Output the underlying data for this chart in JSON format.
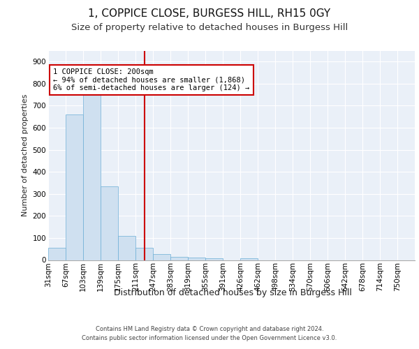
{
  "title1": "1, COPPICE CLOSE, BURGESS HILL, RH15 0GY",
  "title2": "Size of property relative to detached houses in Burgess Hill",
  "xlabel": "Distribution of detached houses by size in Burgess Hill",
  "ylabel": "Number of detached properties",
  "footer1": "Contains HM Land Registry data © Crown copyright and database right 2024.",
  "footer2": "Contains public sector information licensed under the Open Government Licence v3.0.",
  "bin_labels": [
    "31sqm",
    "67sqm",
    "103sqm",
    "139sqm",
    "175sqm",
    "211sqm",
    "247sqm",
    "283sqm",
    "319sqm",
    "355sqm",
    "391sqm",
    "426sqm",
    "462sqm",
    "498sqm",
    "534sqm",
    "570sqm",
    "606sqm",
    "642sqm",
    "678sqm",
    "714sqm",
    "750sqm"
  ],
  "bar_values": [
    55,
    660,
    750,
    335,
    110,
    55,
    27,
    15,
    10,
    7,
    0,
    8,
    0,
    0,
    0,
    0,
    0,
    0,
    0,
    0,
    0
  ],
  "bar_color": "#cfe0f0",
  "bar_edge_color": "#6baed6",
  "vline_position": 5.5,
  "vline_color": "#cc0000",
  "annotation_text": "1 COPPICE CLOSE: 200sqm\n← 94% of detached houses are smaller (1,868)\n6% of semi-detached houses are larger (124) →",
  "annotation_box_color": "#cc0000",
  "ylim": [
    0,
    950
  ],
  "yticks": [
    0,
    100,
    200,
    300,
    400,
    500,
    600,
    700,
    800,
    900
  ],
  "plot_bg_color": "#eaf0f8",
  "grid_color": "#ffffff",
  "title1_fontsize": 11,
  "title2_fontsize": 9.5,
  "xlabel_fontsize": 9,
  "ylabel_fontsize": 8,
  "tick_fontsize": 7.5,
  "annotation_fontsize": 7.5,
  "footer_fontsize": 6.0
}
